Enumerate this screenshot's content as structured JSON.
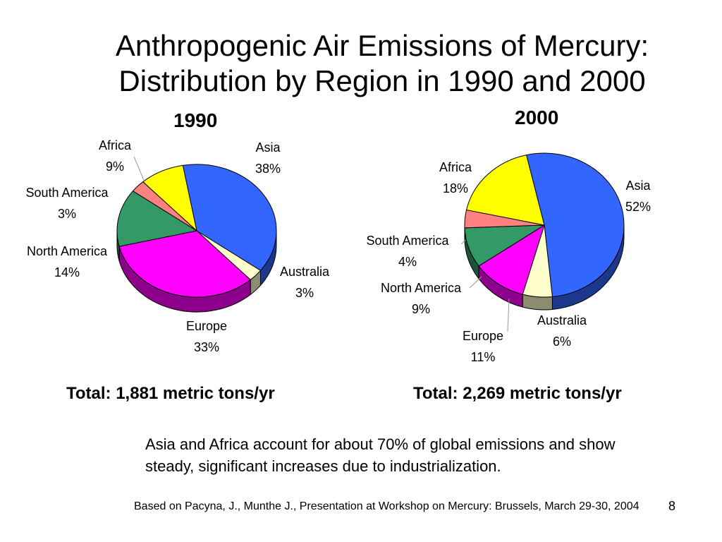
{
  "slide": {
    "title_line1": "Anthropogenic Air Emissions of Mercury:",
    "title_line2": "Distribution by Region in 1990 and 2000",
    "total_1990": "Total:  1,881 metric tons/yr",
    "total_2000": "Total:  2,269 metric tons/yr",
    "note": "Asia and Africa account for about 70% of global emissions and show steady, significant increases due to industrialization.",
    "source": "Based on  Pacyna, J., Munthe J., Presentation at Workshop on Mercury: Brussels, March 29-30, 2004",
    "page_number": "8"
  },
  "chart_data": [
    {
      "type": "pie",
      "title": "1990",
      "categories": [
        "Asia",
        "Australia",
        "Europe",
        "North America",
        "South America",
        "Africa"
      ],
      "values": [
        38,
        3,
        33,
        14,
        3,
        9
      ],
      "labels": [
        "38%",
        "3%",
        "33%",
        "14%",
        "3%",
        "9%"
      ],
      "colors": [
        "#3366ff",
        "#ffffcc",
        "#ff00ff",
        "#339966",
        "#ff8080",
        "#ffff00"
      ]
    },
    {
      "type": "pie",
      "title": "2000",
      "categories": [
        "Asia",
        "Australia",
        "Europe",
        "North America",
        "South America",
        "Africa"
      ],
      "values": [
        52,
        6,
        11,
        9,
        4,
        18
      ],
      "labels": [
        "52%",
        "6%",
        "11%",
        "9%",
        "4%",
        "18%"
      ],
      "colors": [
        "#3366ff",
        "#ffffcc",
        "#ff00ff",
        "#339966",
        "#ff8080",
        "#ffff00"
      ]
    }
  ]
}
